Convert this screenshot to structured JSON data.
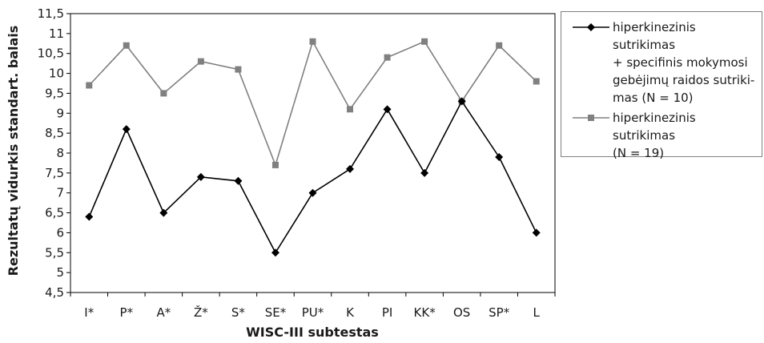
{
  "chart_data": {
    "type": "line",
    "categories": [
      "I*",
      "P*",
      "A*",
      "Ž*",
      "S*",
      "SE*",
      "PU*",
      "K",
      "PI",
      "KK*",
      "OS",
      "SP*",
      "L"
    ],
    "series": [
      {
        "name": "hiperkinezinis sutrikimas + specifinis mokymosi gebėjimų raidos sutriki- mas (N = 10)",
        "name_lines": [
          "hiperkinezinis sutrikimas",
          "+ specifinis mokymosi",
          "gebėjimų raidos sutriki-",
          "mas (N = 10)"
        ],
        "color": "#000000",
        "marker": "diamond",
        "values": [
          6.4,
          8.6,
          6.5,
          7.4,
          7.3,
          5.5,
          7.0,
          7.6,
          9.1,
          7.5,
          9.3,
          7.9,
          6.0
        ]
      },
      {
        "name": "hiperkinezinis sutrikimas (N = 19)",
        "name_lines": [
          "hiperkinezinis sutrikimas",
          "(N = 19)"
        ],
        "color": "#808080",
        "marker": "square",
        "values": [
          9.7,
          10.7,
          9.5,
          10.3,
          10.1,
          7.7,
          10.8,
          9.1,
          10.4,
          10.8,
          9.3,
          10.7,
          9.8
        ]
      }
    ],
    "ylim": [
      4.5,
      11.5
    ],
    "yticks": [
      "4,5",
      "5",
      "5,5",
      "6",
      "6,5",
      "7",
      "7,5",
      "8",
      "8,5",
      "9",
      "9,5",
      "10",
      "10,5",
      "11",
      "11,5"
    ],
    "xlabel": "WISC-III subtestas",
    "ylabel": "Rezultatų vidurkis standart. balais",
    "grid": false,
    "legend_position": "right"
  }
}
